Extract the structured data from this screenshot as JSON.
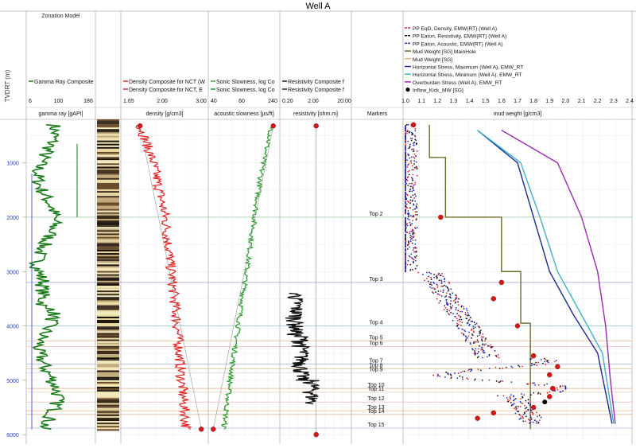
{
  "window_title": "Well A",
  "depth_axis": {
    "label": "TVDRT (m)",
    "min": 200,
    "max": 6100,
    "ticks": [
      "1000",
      "2000",
      "3000",
      "4000",
      "5000",
      "6000"
    ]
  },
  "tracks": {
    "gamma": {
      "header_title": "Zonation Model",
      "legend": [
        "Gamma Ray Composite"
      ],
      "scale_ticks": [
        "6",
        "100",
        "186"
      ],
      "axis_label": "gamma ray [gAPI]",
      "xmin": 6,
      "xmax": 186,
      "color": "#1a7a1a"
    },
    "lithology": {},
    "density": {
      "legend": [
        "Density Composite for NCT (W",
        "Density Composite for NCT, E"
      ],
      "scale_ticks": [
        "1.65",
        "2.00",
        "3.00"
      ],
      "axis_label": "density [g/cm3]",
      "xmin": 1.65,
      "xmax": 3.0,
      "color": "#e02020"
    },
    "acoustic": {
      "legend": [
        "Sonic Slowness, log Co",
        "Sonic Slowness, log Co"
      ],
      "scale_ticks": [
        "40",
        "60",
        "240"
      ],
      "axis_label": "acoustic slowness [µs/ft]",
      "xmin": 40,
      "xmax": 240,
      "color": "#2a9a2a"
    },
    "resistivity": {
      "legend": [
        "Resistivity Composite f",
        "Resistivity Composite f"
      ],
      "scale_ticks": [
        "0.20",
        "2.00",
        "20.00"
      ],
      "axis_label": "resistivity [ohm.m]",
      "xmin": 0.2,
      "xmax": 20,
      "color": "#111111"
    },
    "markers": {
      "axis_label": "Markers"
    },
    "mud": {
      "legend": [
        {
          "label": "PP EqD, Density, EMW(RT) (Well A)",
          "color": "#e02020",
          "style": "dash"
        },
        {
          "label": "PP Eaton, Resistivity, EMW(RT) (Well A)",
          "color": "#111111",
          "style": "dash"
        },
        {
          "label": "PP Eaton, Acoustic, EMW(RT) (Well A)",
          "color": "#1a2ccc",
          "style": "dash"
        },
        {
          "label": "Mud Weight [SG] MainHole",
          "color": "#6b6b2a",
          "style": "line"
        },
        {
          "label": "Mud Weight [SG]",
          "color": "#f0b070",
          "style": "line"
        },
        {
          "label": "Horizontal Stress, Maximum (Well A), EMW_RT",
          "color": "#1a2a8a",
          "style": "line"
        },
        {
          "label": "Horizontal Stress, Minimum (Well A), EMW_RT",
          "color": "#40b0c8",
          "style": "line"
        },
        {
          "label": "Overburden Stress (Well A), EMW_RT",
          "color": "#9a2ab0",
          "style": "line"
        },
        {
          "label": "Inflow_Kick_MW [SG]",
          "color": "#000000",
          "style": "dot"
        }
      ],
      "scale_ticks": [
        "1.0",
        "1.1",
        "1.2",
        "1.3",
        "1.4",
        "1.5",
        "1.6",
        "1.7",
        "1.8",
        "1.9",
        "2.0",
        "2.1",
        "2.2",
        "2.3",
        "2.4"
      ],
      "axis_label": "mud weight [g/cm3]",
      "xmin": 1.0,
      "xmax": 2.4
    }
  },
  "chart_data": [
    {
      "type": "line",
      "title": "Well A",
      "x_axis": "depth",
      "ylabel": "TVDRT (m)",
      "series": [
        {
          "name": "Density Composite for NCT",
          "x_depth": [
            300,
            1000,
            2000,
            3000,
            4000,
            5000,
            5900
          ],
          "values": [
            1.93,
            2.15,
            2.35,
            2.45,
            2.55,
            2.62,
            2.7
          ]
        },
        {
          "name": "Sonic Slowness, log Co",
          "x_depth": [
            300,
            1000,
            2000,
            3000,
            4000,
            5000,
            5900
          ],
          "values": [
            230,
            200,
            175,
            150,
            125,
            100,
            80
          ]
        },
        {
          "name": "Resistivity Composite f",
          "x_depth": [
            3400,
            3800,
            4300,
            4800,
            5200
          ],
          "values": [
            0.6,
            0.8,
            0.5,
            0.9,
            1.5
          ]
        }
      ]
    },
    {
      "type": "line",
      "title": "mud weight",
      "xlabel": "mud weight [g/cm3]",
      "xlim": [
        1.0,
        2.4
      ],
      "series": [
        {
          "name": "Overburden Stress (Well A), EMW_RT",
          "depth": [
            400,
            1000,
            2000,
            3000,
            4000,
            5000,
            5800
          ],
          "values": [
            1.6,
            1.95,
            2.1,
            2.2,
            2.25,
            2.28,
            2.31
          ]
        },
        {
          "name": "Horizontal Stress, Maximum (Well A), EMW_RT",
          "depth": [
            400,
            1000,
            2000,
            3000,
            3800,
            4500,
            5800
          ],
          "values": [
            1.45,
            1.7,
            1.8,
            1.9,
            2.05,
            2.2,
            2.29
          ]
        },
        {
          "name": "Horizontal Stress, Minimum (Well A), EMW_RT",
          "depth": [
            400,
            1000,
            2000,
            3000,
            3800,
            4500,
            5800
          ],
          "values": [
            1.45,
            1.72,
            1.84,
            1.95,
            2.1,
            2.23,
            2.3
          ]
        },
        {
          "name": "Mud Weight [SG] MainHole",
          "depth": [
            300,
            900,
            1400,
            2000,
            3000,
            3950,
            4400,
            5900
          ],
          "values": [
            1.15,
            1.25,
            1.25,
            1.6,
            1.72,
            1.78,
            1.78,
            1.78
          ]
        },
        {
          "name": "Inflow_Kick_MW [SG]",
          "depth": [
            5400
          ],
          "values": [
            1.87
          ]
        }
      ],
      "markers": [
        {
          "label": "Top 2",
          "depth": 2000
        },
        {
          "label": "Top 3",
          "depth": 3200
        },
        {
          "label": "Top 4",
          "depth": 4000
        },
        {
          "label": "Top 5",
          "depth": 4280
        },
        {
          "label": "Top 6",
          "depth": 4380
        },
        {
          "label": "Top 7",
          "depth": 4700
        },
        {
          "label": "Top 8",
          "depth": 4790
        },
        {
          "label": "Top 9",
          "depth": 4860
        },
        {
          "label": "Top 10",
          "depth": 5150
        },
        {
          "label": "Top 11",
          "depth": 5220
        },
        {
          "label": "Top 12",
          "depth": 5400
        },
        {
          "label": "Top 13",
          "depth": 5560
        },
        {
          "label": "Top 14",
          "depth": 5630
        },
        {
          "label": "Top 15",
          "depth": 5880
        }
      ]
    }
  ]
}
